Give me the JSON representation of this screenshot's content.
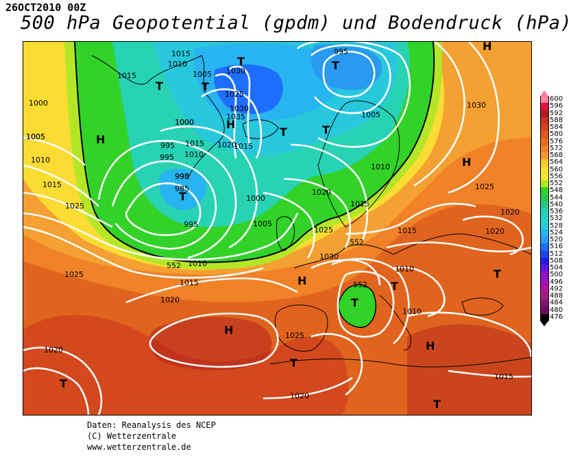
{
  "date_label": "26OCT2010 00Z",
  "title": "500 hPa Geopotential (gpdm) und Bodendruck (hPa)",
  "footer": {
    "line1": "Daten: Reanalysis des NCEP",
    "line2": "(C) Wetterzentrale",
    "line3": "www.wetterzentrale.de"
  },
  "legend": {
    "values": [
      "600",
      "596",
      "592",
      "588",
      "584",
      "580",
      "576",
      "572",
      "568",
      "564",
      "560",
      "556",
      "552",
      "548",
      "544",
      "540",
      "536",
      "532",
      "528",
      "524",
      "520",
      "516",
      "512",
      "508",
      "504",
      "500",
      "496",
      "492",
      "488",
      "484",
      "480",
      "476"
    ],
    "colors": [
      "#ff7f9f",
      "#dc143c",
      "#b01e1e",
      "#c8321e",
      "#d2461e",
      "#dc5a1e",
      "#e66e1e",
      "#f08228",
      "#f59632",
      "#fac832",
      "#fadc32",
      "#f0e632",
      "#b4e628",
      "#32d228",
      "#28c850",
      "#28c88c",
      "#28d2b4",
      "#28d2c8",
      "#28c8dc",
      "#28b4f0",
      "#289bf0",
      "#1e6eff",
      "#1e46f0",
      "#1e1ee6",
      "#6414dc",
      "#8c14c8",
      "#a014b4",
      "#b4149b",
      "#a01e82",
      "#82146e",
      "#6e0a64",
      "#000000"
    ]
  },
  "map": {
    "pressure_labels": [
      "1015",
      "1010",
      "1005",
      "1030",
      "1025",
      "1030",
      "1035",
      "1015",
      "995",
      "1005",
      "1000",
      "1000",
      "1005",
      "995",
      "990",
      "985",
      "995",
      "1015",
      "1010",
      "1020",
      "1015",
      "1000",
      "1005",
      "1010",
      "1020",
      "1015",
      "1005",
      "1010",
      "1030",
      "1025",
      "1020",
      "1020",
      "1025",
      "1030",
      "1025",
      "1015",
      "1010",
      "1010",
      "1020",
      "1025",
      "1015",
      "1015",
      "1010",
      "1020",
      "1025",
      "1020",
      "1015",
      "995",
      "995",
      "1000"
    ],
    "pressure_centers": [
      "H",
      "T",
      "T",
      "H",
      "T",
      "T",
      "H",
      "T",
      "T",
      "T",
      "T",
      "H",
      "H",
      "T",
      "H",
      "T",
      "T",
      "H",
      "T",
      "T",
      "T",
      "H"
    ],
    "isohypse_labels": [
      "552",
      "552",
      "552"
    ]
  }
}
